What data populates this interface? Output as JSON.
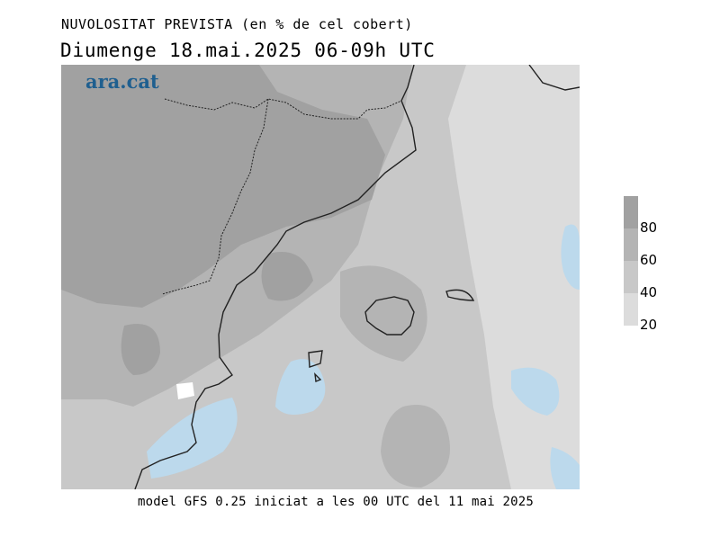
{
  "header": {
    "title": "NUVOLOSITAT PREVISTA (en % de cel cobert)",
    "subtitle": "Diumenge  18.mai.2025 06-09h UTC"
  },
  "logo": {
    "text": "ara.cat",
    "color": "#1f5f8f"
  },
  "legend": {
    "levels": [
      {
        "label": "80",
        "color": "#a1a1a1"
      },
      {
        "label": "60",
        "color": "#b4b4b4"
      },
      {
        "label": "40",
        "color": "#c8c8c8"
      },
      {
        "label": "20",
        "color": "#dcdcdc"
      }
    ],
    "clear_color": "#ffffff",
    "sea_clear_color": "#bcd9ec"
  },
  "footer": {
    "text": "model GFS 0.25 iniciat a les 00 UTC del 11 mai 2025"
  }
}
